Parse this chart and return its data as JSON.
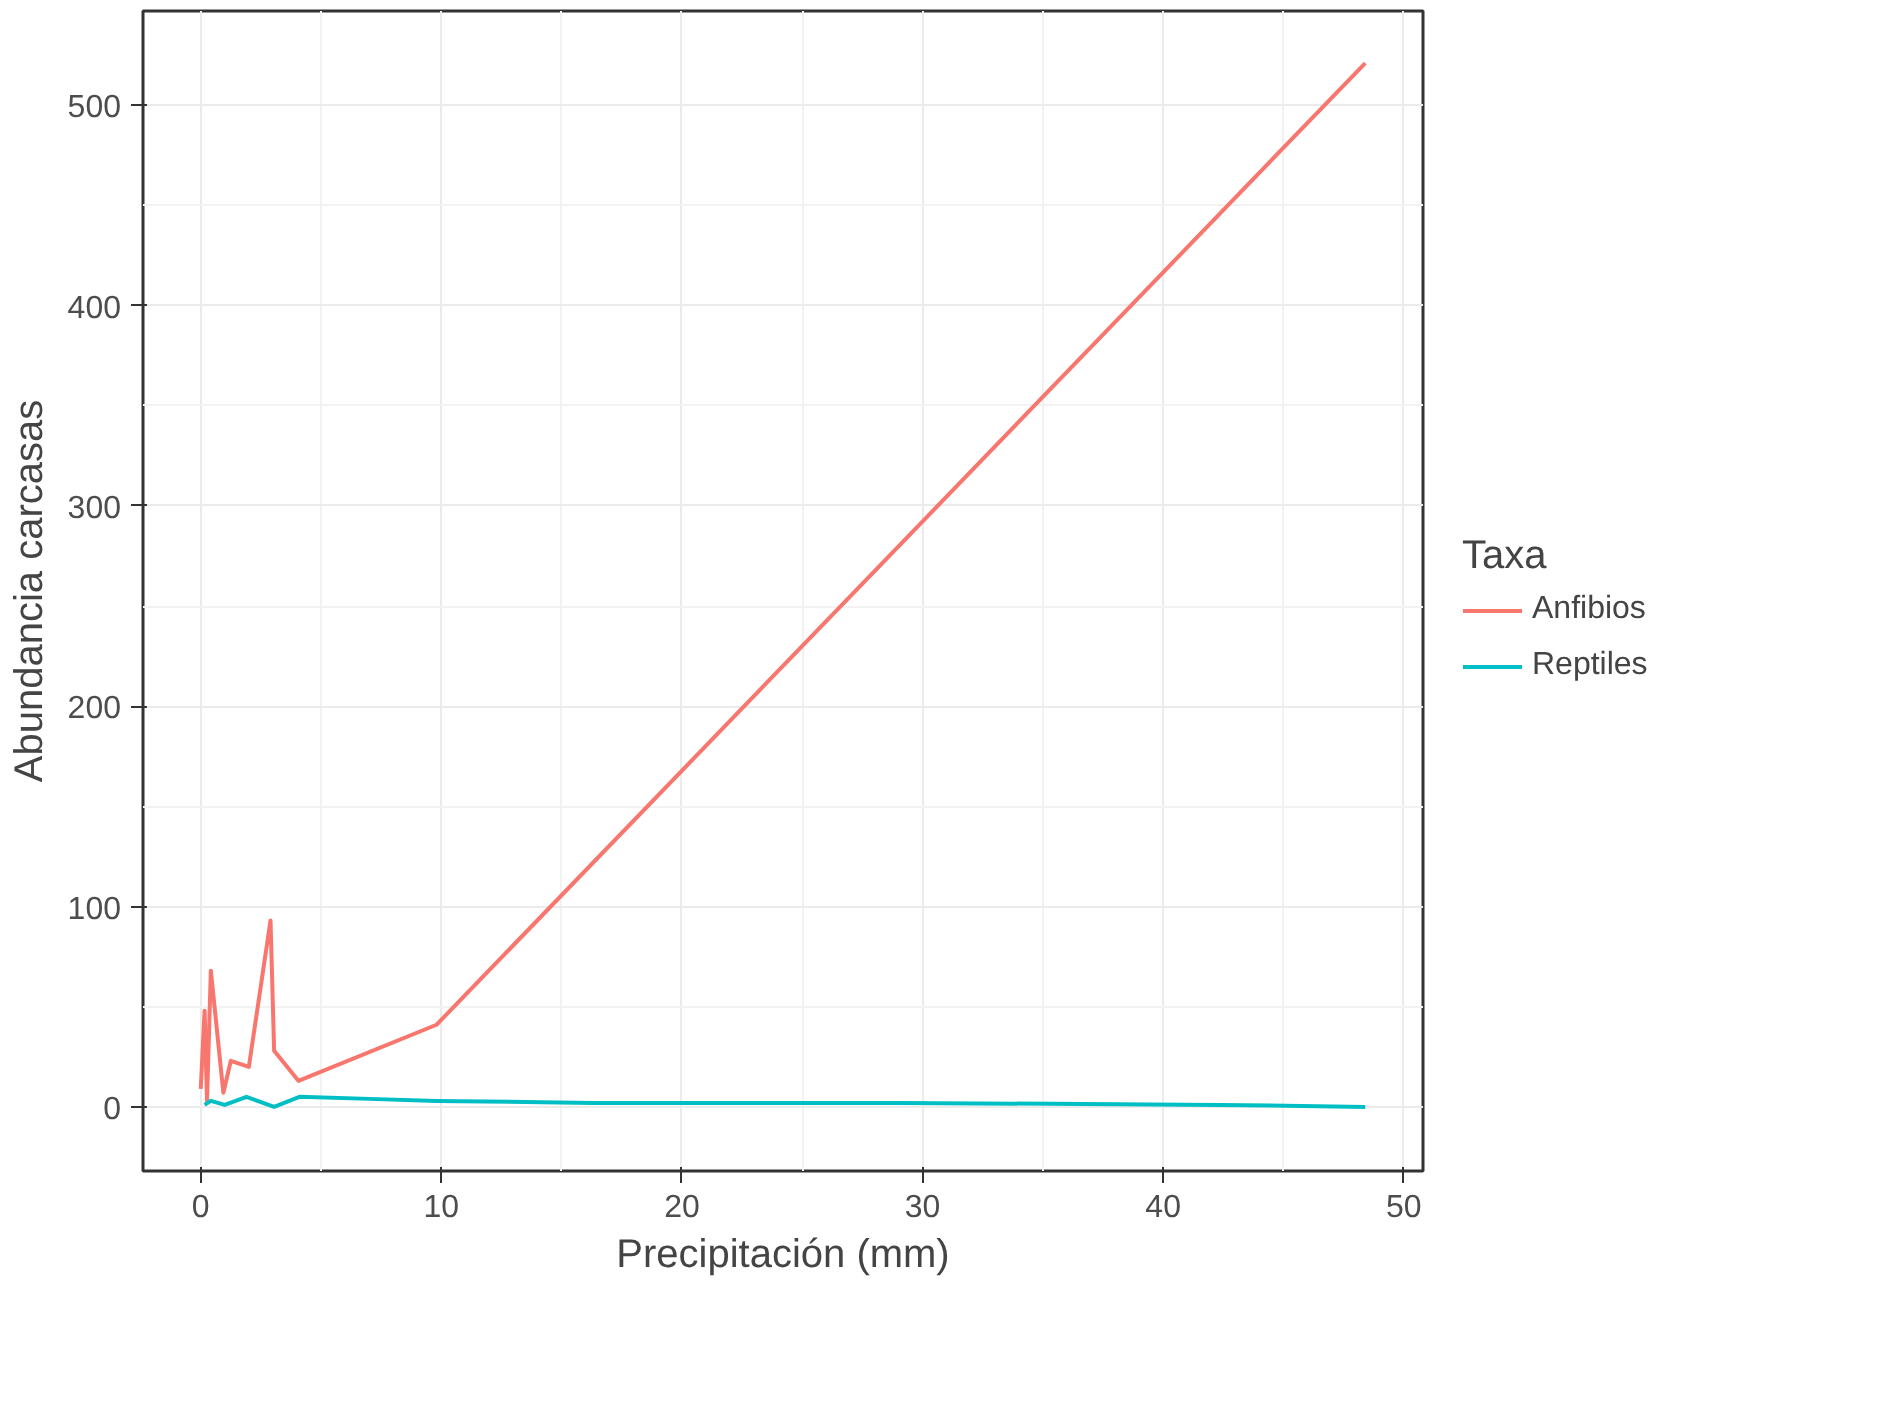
{
  "chart_data": {
    "type": "line",
    "xlabel": "Precipitación (mm)",
    "ylabel": "Abundancia carcasas",
    "legend_title": "Taxa",
    "legend": "right",
    "grid": true,
    "xlim": [
      -2.4,
      50.8
    ],
    "xticks": [
      0,
      10,
      20,
      30,
      40,
      50
    ],
    "ylim": [
      -32,
      547
    ],
    "yticks": [
      0,
      100,
      200,
      300,
      400,
      500
    ],
    "series": [
      {
        "name": "Anfibios",
        "color": "#f8766d",
        "x": [
          0,
          0.16,
          0.26,
          0.42,
          0.94,
          1.25,
          2.0,
          2.9,
          3.05,
          4.06,
          9.8,
          48.4
        ],
        "values": [
          9,
          48,
          3,
          68,
          7,
          23,
          20,
          93,
          28,
          13,
          41,
          521
        ]
      },
      {
        "name": "Reptiles",
        "color": "#00bfc4",
        "x": [
          0.16,
          0.42,
          1.0,
          1.9,
          3.05,
          4.1,
          7,
          9.8,
          16.3,
          29,
          42.3,
          48.4
        ],
        "values": [
          1,
          3,
          1,
          5,
          0,
          5,
          4,
          3,
          2,
          2,
          1,
          0
        ]
      }
    ]
  }
}
